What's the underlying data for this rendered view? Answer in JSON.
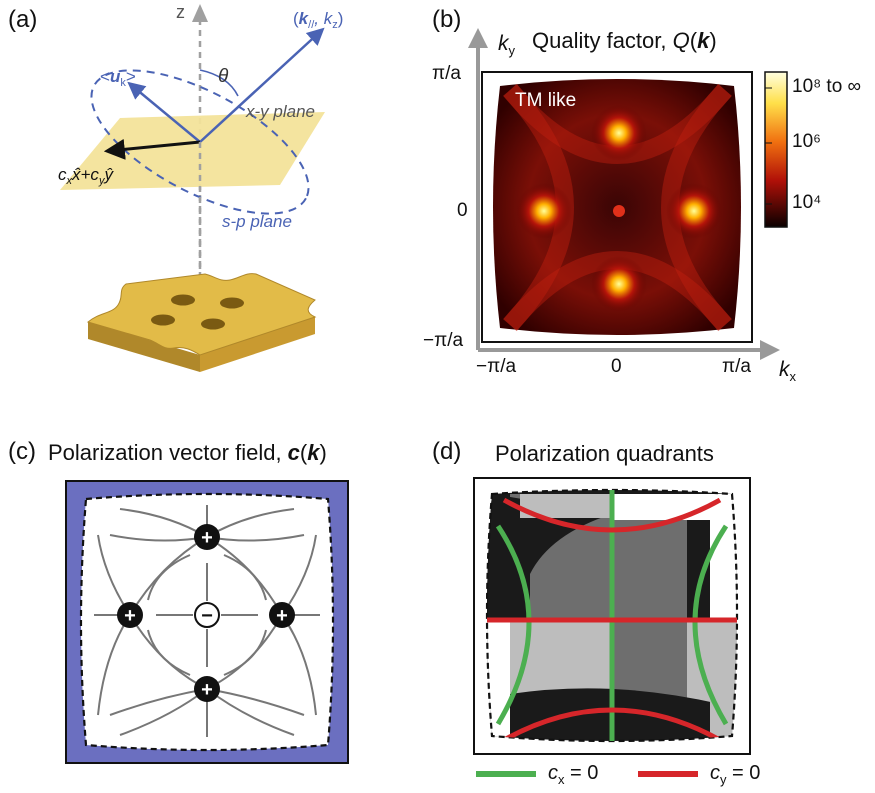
{
  "panels": {
    "a": {
      "label": "(a)",
      "z_axis": "z",
      "k_vec_open": "(",
      "k_vec_k": "k",
      "k_vec_par": "//",
      "k_vec_sep": ", k",
      "k_vec_z": "z",
      "k_vec_close": ")",
      "u_lt": "<",
      "u_u": "u",
      "u_k": "k",
      "u_gt": ">",
      "theta": "θ",
      "xy_plane": "x-y plane",
      "sp_plane": "s-p plane",
      "polar_c1": "c",
      "polar_x": "x",
      "polar_x_hat": "x̂",
      "polar_plus": "+c",
      "polar_y": "y",
      "polar_y_hat": "ŷ"
    },
    "b": {
      "label": "(b)",
      "title_text": "Quality factor, ",
      "title_q": "Q",
      "title_open": "(",
      "title_k": "k",
      "title_close": ")",
      "ky": "k",
      "ky_sub": "y",
      "kx": "k",
      "kx_sub": "x",
      "mode_label": "TM like",
      "y_ticks": [
        "π/a",
        "0",
        "−π/a"
      ],
      "x_ticks": [
        "−π/a",
        "0",
        "π/a"
      ],
      "colorbar_labels": [
        "10⁸ to ∞",
        "10⁶",
        "10⁴"
      ]
    },
    "c": {
      "label": "(c)",
      "title_text": "Polarization vector field, ",
      "title_c": "c",
      "title_open": "(",
      "title_k": "k",
      "title_close": ")",
      "charge_plus": "+",
      "charge_minus": "−"
    },
    "d": {
      "label": "(d)",
      "title": "Polarization quadrants",
      "legend_cx_c": "c",
      "legend_cx_sub": "x",
      "legend_cx_eq": " = 0",
      "legend_cy_c": "c",
      "legend_cy_sub": "y",
      "legend_cy_eq": " = 0"
    }
  },
  "colors": {
    "blue_vector": "#4a63b4",
    "plane_yellow": "#f3e39a",
    "slab_gold": "#d9b23d",
    "field_bg": "#6b6fc0",
    "green_line": "#4caf50",
    "red_line": "#d6262a",
    "quadrant_black": "#1a1a1a",
    "quadrant_dark_gray": "#6e6e6e",
    "quadrant_light_gray": "#bdbdbd"
  }
}
